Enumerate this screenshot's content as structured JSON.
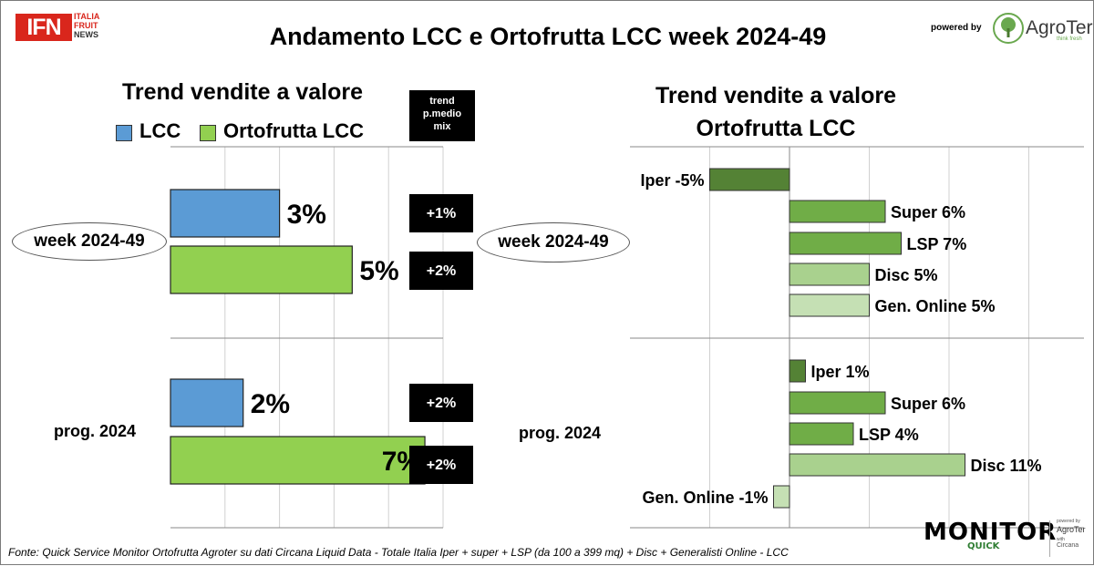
{
  "header": {
    "logo_ifn": "IFN",
    "logo_sub": [
      "ITALIA",
      "FRUIT",
      "NEWS"
    ],
    "title": "Andamento LCC e Ortofrutta LCC week 2024-49",
    "powered_by": "powered by",
    "agroter": "AgroTer",
    "agroter_sub": "think fresh"
  },
  "left_panel": {
    "title": "Trend vendite a valore",
    "legend": [
      {
        "label": "LCC",
        "color": "#5b9bd5"
      },
      {
        "label": "Ortofrutta LCC",
        "color": "#92d050"
      }
    ],
    "trend_box": [
      "trend",
      "p.medio",
      "mix"
    ],
    "groups": [
      "week 2024-49",
      "prog. 2024"
    ]
  },
  "right_panel": {
    "title": [
      "Trend vendite a valore",
      "Ortofrutta LCC"
    ],
    "groups": [
      "week 2024-49",
      "prog. 2024"
    ]
  },
  "chart_data": [
    {
      "type": "bar",
      "orientation": "horizontal",
      "title": "Trend vendite a valore",
      "categories": [
        "week 2024-49",
        "prog. 2024"
      ],
      "series": [
        {
          "name": "LCC",
          "values": [
            3,
            2
          ],
          "labels": [
            "3%",
            "2%"
          ],
          "color": "#5b9bd5"
        },
        {
          "name": "Ortofrutta LCC",
          "values": [
            5,
            7
          ],
          "labels": [
            "5%",
            "7%"
          ],
          "color": "#92d050"
        }
      ],
      "trend_p_medio_mix": [
        {
          "category": "week 2024-49",
          "values": [
            "+1%",
            "+2%"
          ]
        },
        {
          "category": "prog. 2024",
          "values": [
            "+2%",
            "+2%"
          ]
        }
      ],
      "xlim": [
        0,
        7.5
      ],
      "grid": true,
      "legend": "top"
    },
    {
      "type": "bar",
      "orientation": "horizontal",
      "title": "Trend vendite a valore Ortofrutta LCC",
      "groups": [
        {
          "name": "week 2024-49",
          "bars": [
            {
              "label": "Iper -5%",
              "value": -5,
              "color": "#548235"
            },
            {
              "label": "Super 6%",
              "value": 6,
              "color": "#70ad47"
            },
            {
              "label": "LSP 7%",
              "value": 7,
              "color": "#70ad47"
            },
            {
              "label": "Disc 5%",
              "value": 5,
              "color": "#a9d18e"
            },
            {
              "label": "Gen. Online 5%",
              "value": 5,
              "color": "#c5e0b4"
            }
          ]
        },
        {
          "name": "prog. 2024",
          "bars": [
            {
              "label": "Iper 1%",
              "value": 1,
              "color": "#548235"
            },
            {
              "label": "Super 6%",
              "value": 6,
              "color": "#70ad47"
            },
            {
              "label": "LSP 4%",
              "value": 4,
              "color": "#70ad47"
            },
            {
              "label": "Disc 11%",
              "value": 11,
              "color": "#a9d18e"
            },
            {
              "label": "Gen. Online -1%",
              "value": -1,
              "color": "#c5e0b4"
            }
          ]
        }
      ],
      "xlim": [
        -5,
        12
      ],
      "grid": true
    }
  ],
  "footer": {
    "source": "Fonte: Quick Service Monitor Ortofrutta Agroter su dati Circana Liquid Data - Totale Italia Iper + super + LSP (da 100 a 399 mq) + Disc + Generalisti Online - LCC",
    "monitor": "MONITOR",
    "quick": "QUICK",
    "monitor_powered": "powered by",
    "monitor_agroter": "AgroTer",
    "monitor_with": "with",
    "monitor_circana": "Circana"
  }
}
